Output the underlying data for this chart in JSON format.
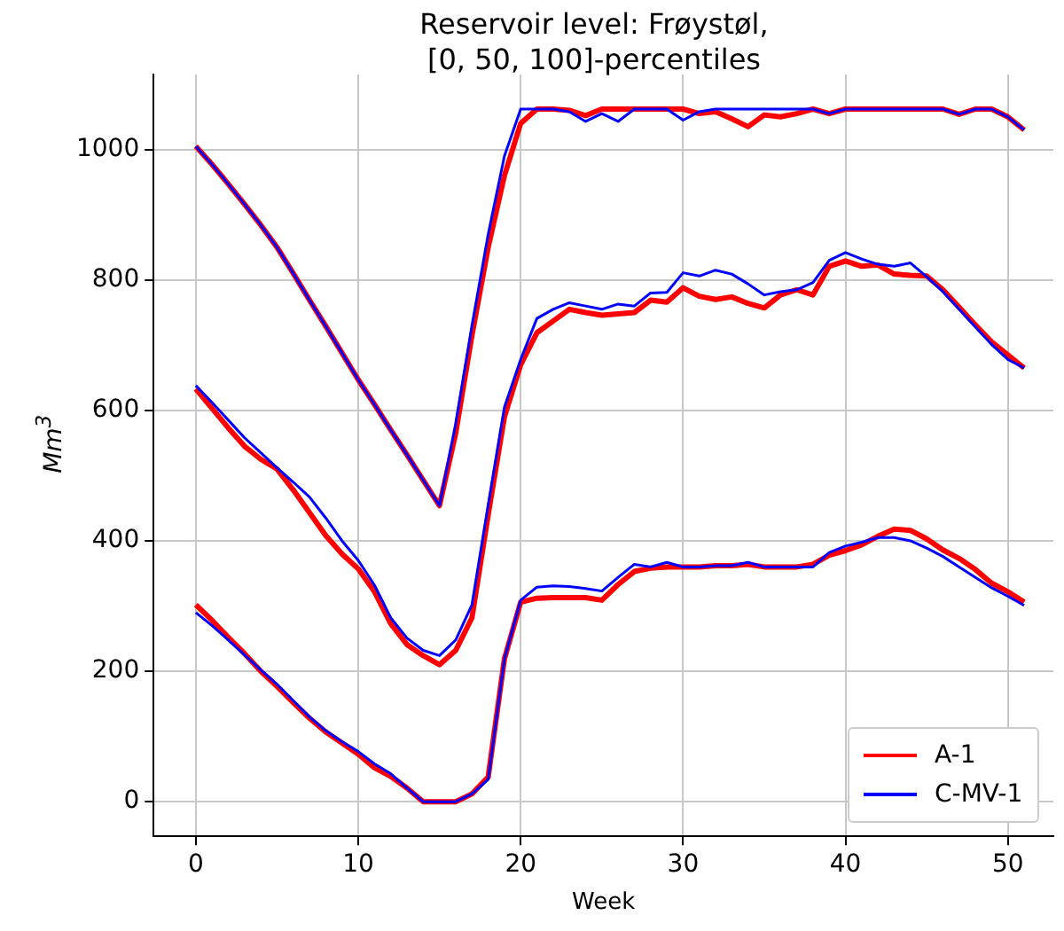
{
  "chart_data": {
    "type": "line",
    "title": "Reservoir level: Frøystøl,\n[0, 50, 100]-percentiles",
    "xlabel": "Week",
    "ylabel": "Mm$^{3}$",
    "x": [
      0,
      1,
      2,
      3,
      4,
      5,
      6,
      7,
      8,
      9,
      10,
      11,
      12,
      13,
      14,
      15,
      16,
      17,
      18,
      19,
      20,
      21,
      22,
      23,
      24,
      25,
      26,
      27,
      28,
      29,
      30,
      31,
      32,
      33,
      34,
      35,
      36,
      37,
      38,
      39,
      40,
      41,
      42,
      43,
      44,
      45,
      46,
      47,
      48,
      49,
      50,
      51
    ],
    "series": [
      {
        "name": "A-1",
        "color": "#ff0000",
        "values": [
          302,
          278,
          252,
          227,
          200,
          177,
          152,
          128,
          107,
          90,
          73,
          52,
          39,
          21,
          0,
          0,
          0,
          12,
          38,
          219,
          306,
          312,
          313,
          313,
          313,
          309,
          333,
          353,
          358,
          360,
          360,
          360,
          362,
          362,
          364,
          360,
          360,
          360,
          364,
          378,
          385,
          394,
          407,
          418,
          416,
          403,
          386,
          373,
          356,
          335,
          322,
          306
        ]
      },
      {
        "color": "#ff0000",
        "values": [
          633,
          603,
          573,
          545,
          525,
          510,
          478,
          443,
          408,
          380,
          357,
          322,
          273,
          241,
          224,
          210,
          232,
          282,
          440,
          590,
          670,
          719,
          737,
          755,
          750,
          746,
          748,
          750,
          769,
          766,
          788,
          775,
          770,
          774,
          764,
          757,
          777,
          785,
          777,
          821,
          829,
          821,
          823,
          809,
          807,
          806,
          785,
          758,
          731,
          705,
          685,
          665
        ]
      },
      {
        "color": "#ff0000",
        "values": [
          1005,
          977,
          947,
          916,
          884,
          850,
          810,
          769,
          729,
          688,
          647,
          609,
          570,
          532,
          493,
          454,
          565,
          715,
          850,
          960,
          1040,
          1062,
          1062,
          1060,
          1052,
          1062,
          1062,
          1062,
          1062,
          1062,
          1062,
          1055,
          1058,
          1047,
          1035,
          1053,
          1050,
          1055,
          1062,
          1055,
          1062,
          1062,
          1062,
          1062,
          1062,
          1062,
          1062,
          1054,
          1062,
          1062,
          1050,
          1030
        ]
      },
      {
        "name": "C-MV-1",
        "color": "#0000ff",
        "values": [
          290,
          270,
          248,
          225,
          202,
          180,
          155,
          130,
          109,
          92,
          77,
          58,
          43,
          21,
          0,
          0,
          0,
          12,
          34,
          219,
          309,
          329,
          331,
          330,
          327,
          323,
          344,
          364,
          360,
          367,
          360,
          360,
          362,
          362,
          367,
          360,
          360,
          360,
          360,
          382,
          392,
          398,
          405,
          405,
          400,
          389,
          376,
          360,
          344,
          328,
          315,
          301
        ]
      },
      {
        "color": "#0000ff",
        "values": [
          638,
          612,
          585,
          558,
          535,
          512,
          490,
          467,
          435,
          400,
          370,
          332,
          282,
          251,
          232,
          224,
          248,
          302,
          455,
          605,
          678,
          741,
          755,
          765,
          760,
          755,
          763,
          760,
          780,
          781,
          811,
          806,
          815,
          809,
          794,
          777,
          782,
          785,
          796,
          830,
          842,
          832,
          824,
          821,
          826,
          805,
          782,
          755,
          728,
          701,
          678,
          665
        ]
      },
      {
        "color": "#0000ff",
        "values": [
          1005,
          977,
          947,
          916,
          884,
          850,
          810,
          769,
          729,
          688,
          647,
          609,
          570,
          532,
          493,
          454,
          580,
          730,
          870,
          990,
          1062,
          1062,
          1062,
          1058,
          1043,
          1055,
          1043,
          1062,
          1062,
          1062,
          1045,
          1058,
          1062,
          1062,
          1062,
          1062,
          1062,
          1062,
          1062,
          1055,
          1062,
          1062,
          1062,
          1062,
          1062,
          1062,
          1062,
          1054,
          1062,
          1062,
          1050,
          1030
        ]
      }
    ],
    "xlim": [
      -2.6,
      52.8
    ],
    "xticks": [
      0,
      10,
      20,
      30,
      40,
      50
    ],
    "ylim": [
      -53,
      1115
    ],
    "yticks": [
      0,
      200,
      400,
      600,
      800,
      1000
    ],
    "grid": true,
    "legend": "bottom right",
    "marker": "none",
    "line_style": "solid"
  }
}
